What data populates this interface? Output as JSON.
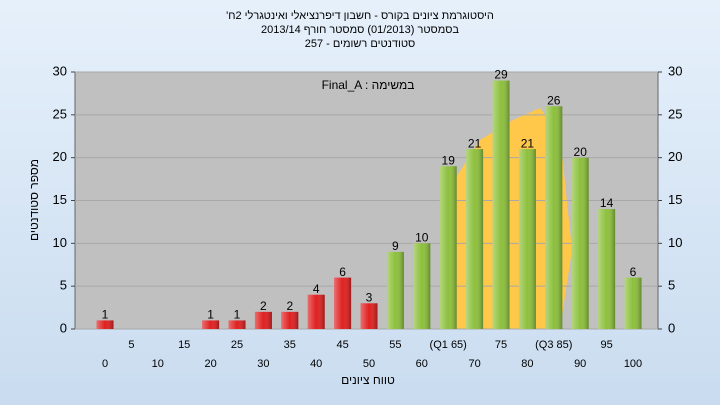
{
  "chart_data": {
    "type": "bar",
    "title_lines": [
      "'היסטוגרמת ציונים בקורס - חשבון דיפרנציאלי ואינטגרלי 2ח",
      "בסמסטר  (01/2013)  סמסטר חורף 2013/14",
      "סטודנטים רשומים - 257"
    ],
    "annotation": "Final_A : במשימה",
    "x_label": "טווח ציונים",
    "y_label": "מספר סטודנטים",
    "categories": [
      "0",
      "5",
      "10",
      "15",
      "20",
      "25",
      "30",
      "35",
      "40",
      "45",
      "50",
      "55",
      "60",
      "(Q1 65)",
      "70",
      "75",
      "80",
      "(Q3 85)",
      "90",
      "95",
      "100"
    ],
    "values": [
      1,
      0,
      0,
      0,
      1,
      1,
      2,
      2,
      4,
      6,
      3,
      9,
      10,
      19,
      21,
      29,
      21,
      26,
      20,
      14,
      6
    ],
    "colors": [
      "#e02020",
      "#e02020",
      "#e02020",
      "#e02020",
      "#e02020",
      "#e02020",
      "#e02020",
      "#e02020",
      "#e02020",
      "#e02020",
      "#e02020",
      "#8dc03c",
      "#8dc03c",
      "#8dc03c",
      "#8dc03c",
      "#8dc03c",
      "#8dc03c",
      "#8dc03c",
      "#8dc03c",
      "#8dc03c",
      "#8dc03c"
    ],
    "ylim": [
      0,
      30
    ],
    "yticks": [
      0,
      5,
      10,
      15,
      20,
      25,
      30
    ],
    "y2lim": [
      0,
      30
    ],
    "y2ticks": [
      0,
      5,
      10,
      15,
      20,
      25,
      30
    ],
    "grid": true
  }
}
